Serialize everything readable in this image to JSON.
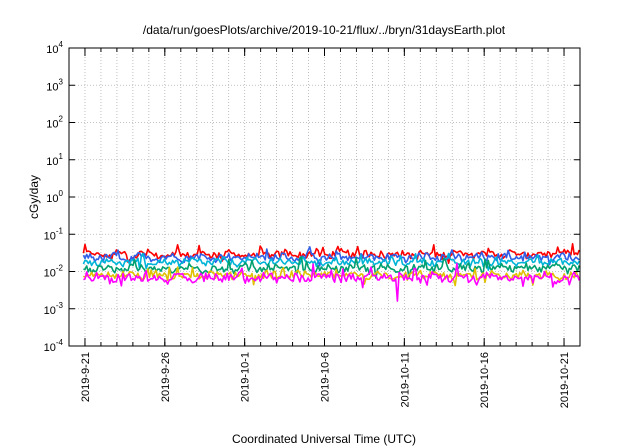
{
  "chart_data": {
    "type": "line",
    "title": "/data/run/goesPlots/archive/2019-10-21/flux/../bryn/31daysEarth.plot",
    "xlabel": "Coordinated Universal Time (UTC)",
    "ylabel": "cGy/day",
    "y_scale": "log",
    "ylim_exponent": [
      -4,
      4
    ],
    "y_ticks": [
      {
        "base": "10",
        "exp": "4"
      },
      {
        "base": "10",
        "exp": "3"
      },
      {
        "base": "10",
        "exp": "2"
      },
      {
        "base": "10",
        "exp": "1"
      },
      {
        "base": "10",
        "exp": "0"
      },
      {
        "base": "10",
        "exp": "-1"
      },
      {
        "base": "10",
        "exp": "-2"
      },
      {
        "base": "10",
        "exp": "-3"
      },
      {
        "base": "10",
        "exp": "-4"
      }
    ],
    "x_range_days": [
      "2019-9-20",
      "2019-10-22"
    ],
    "x_ticks": [
      "2019-9-21",
      "2019-9-26",
      "2019-10-1",
      "2019-10-6",
      "2019-10-11",
      "2019-10-16",
      "2019-10-21"
    ],
    "grid": true,
    "series": [
      {
        "color": "#ff0000",
        "base": 0.029,
        "amp": 0.18
      },
      {
        "color": "#2f5fe8",
        "base": 0.024,
        "amp": 0.17
      },
      {
        "color": "#00b4d8",
        "base": 0.018,
        "amp": 0.15
      },
      {
        "color": "#00a070",
        "base": 0.012,
        "amp": 0.18
      },
      {
        "color": "#e0c000",
        "base": 0.0078,
        "amp": 0.16
      },
      {
        "color": "#ff00ff",
        "base": 0.0068,
        "amp": 0.22
      }
    ]
  }
}
